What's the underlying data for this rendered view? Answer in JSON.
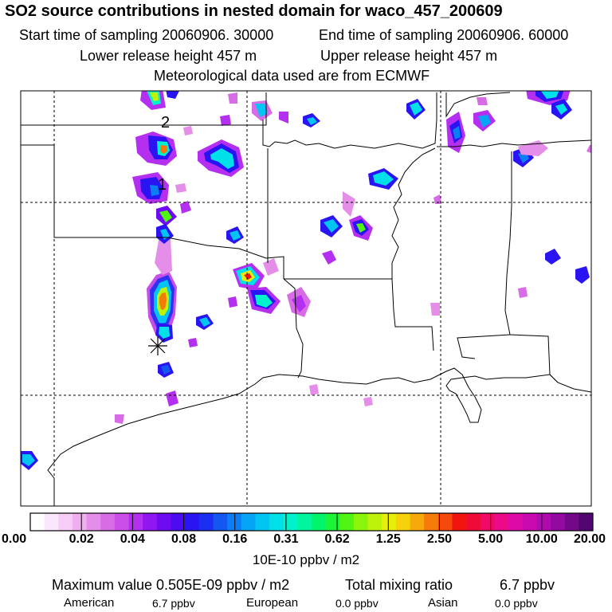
{
  "header": {
    "title": "SO2 source contributions in nested domain for waco_457_200609",
    "start_label": "Start time of sampling 20060906. 30000",
    "end_label": "End time of sampling 20060906. 60000",
    "lower_label": "Lower release height  457 m",
    "upper_label": "Upper release height  457 m",
    "met_label": "Meteorological data used are from ECMWF"
  },
  "map": {
    "markers": [
      {
        "label": "2"
      },
      {
        "label": "1"
      }
    ],
    "source_symbol": "asterisk-icon"
  },
  "colorbar": {
    "tick_labels": [
      "0.00",
      "0.02",
      "0.04",
      "0.08",
      "0.16",
      "0.31",
      "0.62",
      "1.25",
      "2.50",
      "5.00",
      "10.00",
      "20.00"
    ],
    "colors": [
      "#ffffff",
      "#fbe7fb",
      "#f6cdf6",
      "#f0b0f0",
      "#e58ee9",
      "#d86ce6",
      "#cc4ee8",
      "#b52ff0",
      "#9016f2",
      "#6f0bf2",
      "#4c0cf2",
      "#2a14f2",
      "#1a2ff2",
      "#1456f2",
      "#0b7ef5",
      "#05a4f5",
      "#00c4f2",
      "#00e0e8",
      "#00f2cc",
      "#00f59c",
      "#00f56c",
      "#1af53a",
      "#50f514",
      "#8af50a",
      "#bff20a",
      "#e8ed0a",
      "#f5d20a",
      "#f5aa0a",
      "#f57c0a",
      "#f54a0c",
      "#f2140f",
      "#f00a38",
      "#f00a64",
      "#ec0a8a",
      "#de0aa8",
      "#c80ab0",
      "#ae0aae",
      "#920aa0",
      "#74088a",
      "#520670"
    ],
    "units": "10E-10 ppbv / m2"
  },
  "footer": {
    "max_label": "Maximum value  0.505E-09 ppbv / m2",
    "total_label": "Total mixing ratio",
    "total_value": "6.7 ppbv",
    "american_label": "American",
    "american_value": "6.7 ppbv",
    "european_label": "European",
    "european_value": "0.0 ppbv",
    "asian_label": "Asian",
    "asian_value": "0.0 ppbv"
  }
}
